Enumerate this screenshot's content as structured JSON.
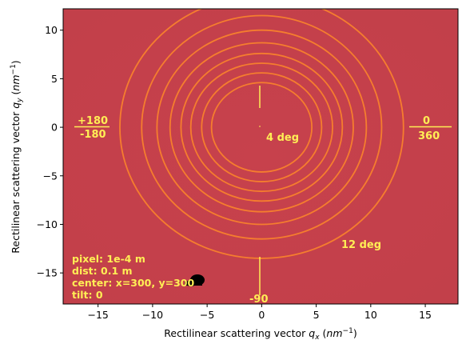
{
  "chart_data": {
    "type": "heatmap",
    "title": "",
    "xlabel_main": "Rectilinear scattering vector ",
    "xlabel_var": "q",
    "xlabel_sub": "x",
    "xlabel_unit_pre": " (",
    "xlabel_unit": "nm",
    "xlabel_exp": "−1",
    "xlabel_unit_post": ")",
    "ylabel_main": "Rectilinear scattering vector ",
    "ylabel_var": "q",
    "ylabel_sub": "y",
    "ylabel_unit_pre": " (",
    "ylabel_unit": "nm",
    "ylabel_exp": "−1",
    "ylabel_unit_post": ")",
    "xlim": [
      -18.2,
      18.0
    ],
    "ylim": [
      -18.2,
      12.2
    ],
    "xticks": [
      -15,
      -10,
      -5,
      0,
      5,
      10,
      15
    ],
    "yticks": [
      -15,
      -10,
      -5,
      0,
      5,
      10
    ],
    "xtick_labels": [
      "−15",
      "−10",
      "−5",
      "0",
      "5",
      "10",
      "15"
    ],
    "ytick_labels": [
      "−15",
      "−10",
      "−5",
      "0",
      "5",
      "10"
    ],
    "background_color": "#c7414c",
    "ring_color": "#f57d2e",
    "annotation_color": "#ffee55",
    "rings": [
      {
        "rx": 4.6,
        "ry": 4.6
      },
      {
        "rx": 5.5,
        "ry": 5.6
      },
      {
        "rx": 6.5,
        "ry": 6.6
      },
      {
        "rx": 7.4,
        "ry": 7.6
      },
      {
        "rx": 8.4,
        "ry": 8.7
      },
      {
        "rx": 9.6,
        "ry": 10.0
      },
      {
        "rx": 11.0,
        "ry": 11.5
      },
      {
        "rx": 13.0,
        "ry": 13.5
      }
    ],
    "annotations": {
      "left_top": "+180",
      "left_bottom": "-180",
      "right_top": "0",
      "right_bottom": "360",
      "ring_inner": "4 deg",
      "ring_outer": "12 deg",
      "bottom": "-90"
    },
    "info_lines": [
      "pixel: 1e-4 m",
      "dist: 0.1 m",
      "center: x=300, y=300",
      "tilt: 0"
    ]
  }
}
